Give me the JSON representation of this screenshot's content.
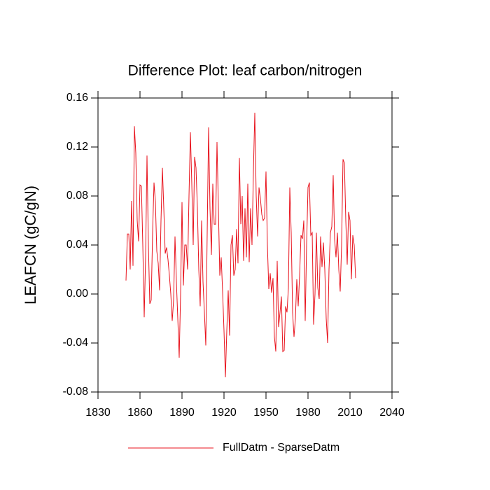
{
  "chart_data": {
    "type": "line",
    "title": "Difference Plot: leaf carbon/nitrogen",
    "y_label": "LEAFCN  (gC/gN)",
    "x": [
      1850,
      1851,
      1852,
      1853,
      1854,
      1855,
      1856,
      1857,
      1858,
      1859,
      1860,
      1861,
      1862,
      1863,
      1864,
      1865,
      1866,
      1867,
      1868,
      1869,
      1870,
      1871,
      1872,
      1873,
      1874,
      1875,
      1876,
      1877,
      1878,
      1879,
      1880,
      1881,
      1882,
      1883,
      1884,
      1885,
      1886,
      1887,
      1888,
      1889,
      1890,
      1891,
      1892,
      1893,
      1894,
      1895,
      1896,
      1897,
      1898,
      1899,
      1900,
      1901,
      1902,
      1903,
      1904,
      1905,
      1906,
      1907,
      1908,
      1909,
      1910,
      1911,
      1912,
      1913,
      1914,
      1915,
      1916,
      1917,
      1918,
      1919,
      1920,
      1921,
      1922,
      1923,
      1924,
      1925,
      1926,
      1927,
      1928,
      1929,
      1930,
      1931,
      1932,
      1933,
      1934,
      1935,
      1936,
      1937,
      1938,
      1939,
      1940,
      1941,
      1942,
      1943,
      1944,
      1945,
      1946,
      1947,
      1948,
      1949,
      1950,
      1951,
      1952,
      1953,
      1954,
      1955,
      1956,
      1957,
      1958,
      1959,
      1960,
      1961,
      1962,
      1963,
      1964,
      1965,
      1966,
      1967,
      1968,
      1969,
      1970,
      1971,
      1972,
      1973,
      1974,
      1975,
      1976,
      1977,
      1978,
      1979,
      1980,
      1981,
      1982,
      1983,
      1984,
      1985,
      1986,
      1987,
      1988,
      1989,
      1990,
      1991,
      1992,
      1993,
      1994,
      1995,
      1996,
      1997,
      1998,
      1999,
      2000,
      2001,
      2002,
      2003,
      2004,
      2005,
      2006,
      2007,
      2008,
      2009,
      2010,
      2011,
      2012,
      2013,
      2014
    ],
    "series": [
      {
        "name": "FullDatm - SparseDatm",
        "color": "#e8141e",
        "values": [
          0.011,
          0.049,
          0.049,
          0.02,
          0.076,
          0.023,
          0.137,
          0.115,
          0.06,
          0.043,
          0.089,
          0.088,
          0.04,
          -0.019,
          0.03,
          0.113,
          0.04,
          -0.008,
          -0.005,
          0.05,
          0.091,
          0.075,
          0.035,
          0.025,
          0.003,
          0.06,
          0.103,
          0.07,
          0.033,
          0.038,
          0.028,
          0.015,
          0.0,
          -0.022,
          -0.005,
          0.047,
          0.01,
          -0.02,
          -0.052,
          0.0,
          0.075,
          0.007,
          0.04,
          0.04,
          0.02,
          0.08,
          0.132,
          0.09,
          0.04,
          0.112,
          0.103,
          0.07,
          0.02,
          -0.01,
          0.06,
          0.01,
          -0.015,
          -0.042,
          0.05,
          0.136,
          0.07,
          0.032,
          0.09,
          0.057,
          0.057,
          0.124,
          0.07,
          0.015,
          0.03,
          0.002,
          -0.03,
          -0.068,
          -0.03,
          0.003,
          -0.034,
          0.04,
          0.048,
          0.015,
          0.02,
          0.053,
          0.025,
          0.111,
          0.057,
          0.08,
          0.027,
          0.07,
          0.03,
          0.09,
          0.026,
          0.07,
          0.04,
          0.1,
          0.148,
          0.08,
          0.047,
          0.087,
          0.078,
          0.065,
          0.06,
          0.062,
          0.1,
          0.04,
          0.004,
          0.017,
          0.001,
          0.013,
          -0.035,
          -0.047,
          0.027,
          -0.027,
          -0.015,
          -0.002,
          -0.047,
          -0.046,
          -0.01,
          -0.015,
          0.005,
          0.087,
          0.05,
          -0.015,
          -0.035,
          -0.02,
          0.012,
          -0.01,
          0.015,
          0.048,
          0.045,
          0.06,
          -0.022,
          0.04,
          0.087,
          0.091,
          0.048,
          0.05,
          -0.025,
          0.0,
          0.05,
          0.005,
          -0.004,
          0.047,
          0.022,
          0.042,
          0.02,
          -0.02,
          -0.04,
          0.02,
          0.05,
          0.055,
          0.097,
          0.045,
          0.03,
          0.05,
          0.02,
          0.002,
          0.04,
          0.11,
          0.107,
          0.06,
          0.024,
          0.067,
          0.06,
          0.012,
          0.048,
          0.04,
          0.013
        ]
      }
    ],
    "xlim": [
      1830,
      2040
    ],
    "xticks": [
      1830,
      1860,
      1890,
      1920,
      1950,
      1980,
      2010,
      2040
    ],
    "ylim": [
      -0.08,
      0.16
    ],
    "yticks": [
      {
        "value": -0.08,
        "label": "-0.08"
      },
      {
        "value": -0.04,
        "label": "-0.04"
      },
      {
        "value": 0,
        "label": "0.00"
      },
      {
        "value": 0.04,
        "label": "0.04"
      },
      {
        "value": 0.08,
        "label": "0.08"
      },
      {
        "value": 0.12,
        "label": "0.12"
      },
      {
        "value": 0.16,
        "label": "0.16"
      }
    ]
  }
}
